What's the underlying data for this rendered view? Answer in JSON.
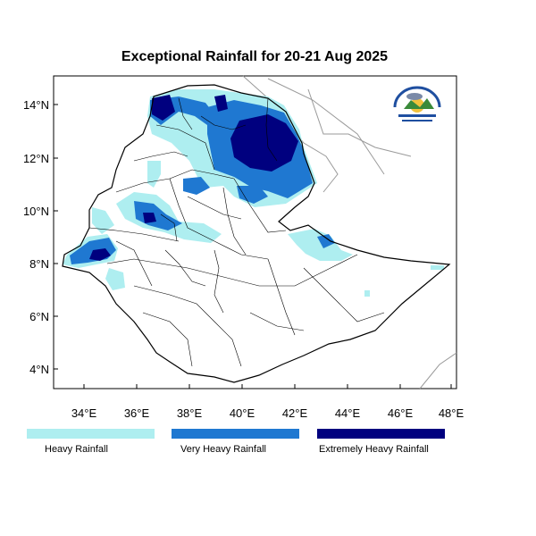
{
  "title": "Exceptional Rainfall for 20-21 Aug 2025",
  "map": {
    "lon_ticks": [
      "34°E",
      "36°E",
      "38°E",
      "40°E",
      "42°E",
      "44°E",
      "46°E",
      "48°E"
    ],
    "lat_ticks": [
      "14°N",
      "12°N",
      "10°N",
      "8°N",
      "6°N",
      "4°N"
    ]
  },
  "colors": {
    "heavy": "#aeeef0",
    "very_heavy": "#1f78d1",
    "extremely_heavy": "#00007f",
    "border": "#000000",
    "neighbor_border": "#999999"
  },
  "legend": [
    {
      "label": "Heavy Rainfall",
      "color": "#aeeef0"
    },
    {
      "label": "Very Heavy Rainfall",
      "color": "#1f78d1"
    },
    {
      "label": "Extremely Heavy Rainfall",
      "color": "#00007f"
    }
  ],
  "logo": {
    "icon": "ethiopian-meteorology-institute-logo"
  }
}
